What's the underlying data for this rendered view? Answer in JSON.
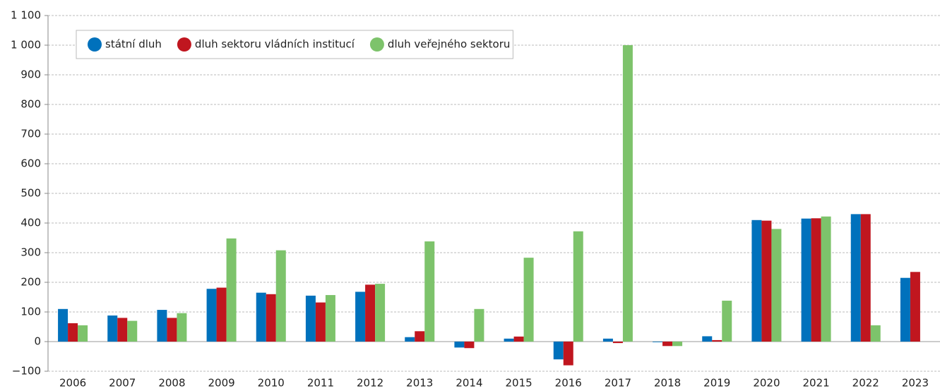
{
  "chart_data": {
    "type": "bar",
    "categories": [
      "2006",
      "2007",
      "2008",
      "2009",
      "2010",
      "2011",
      "2012",
      "2013",
      "2014",
      "2015",
      "2016",
      "2017",
      "2018",
      "2019",
      "2020",
      "2021",
      "2022",
      "2023"
    ],
    "series": [
      {
        "name": "státní dluh",
        "color": "#0071bc",
        "values": [
          110,
          88,
          107,
          178,
          165,
          155,
          168,
          15,
          -20,
          10,
          -60,
          10,
          -2,
          18,
          410,
          415,
          430,
          215
        ]
      },
      {
        "name": "dluh sektoru vládních institucí",
        "color": "#c0161f",
        "values": [
          62,
          80,
          80,
          182,
          160,
          132,
          192,
          35,
          -22,
          17,
          -80,
          -5,
          -15,
          5,
          408,
          416,
          430,
          235
        ]
      },
      {
        "name": "dluh veřejného sektoru",
        "color": "#7dc36b",
        "values": [
          55,
          70,
          96,
          348,
          308,
          157,
          195,
          338,
          110,
          283,
          372,
          1000,
          -15,
          138,
          380,
          422,
          55,
          null
        ]
      }
    ],
    "ylim": [
      -100,
      1100
    ],
    "yticks": [
      {
        "value": -100,
        "label": "−100"
      },
      0,
      100,
      200,
      300,
      400,
      500,
      600,
      700,
      800,
      900,
      {
        "value": 1000,
        "label": "1 000"
      },
      {
        "value": 1100,
        "label": "1 100"
      }
    ],
    "grid": true,
    "legend": "top-left"
  }
}
